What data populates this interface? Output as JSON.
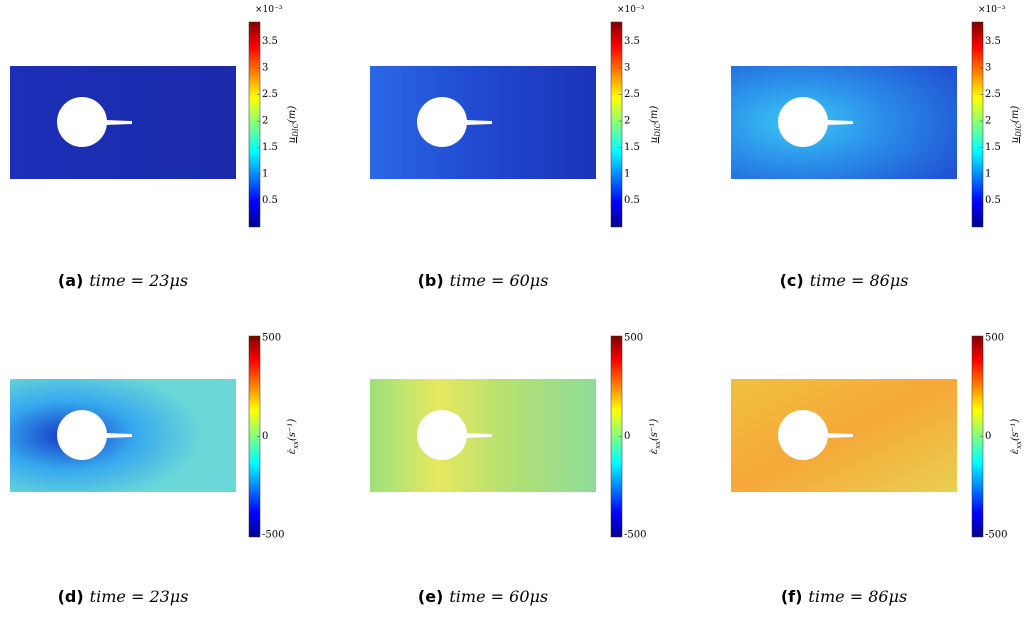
{
  "figure": {
    "rows": [
      {
        "colorbar": {
          "multiplier": "×10⁻³",
          "label": "u",
          "label_sub": "DIC",
          "label_unit": "(m)",
          "range": [
            0,
            3.87
          ],
          "ticks": [
            0.5,
            1,
            1.5,
            2,
            2.5,
            3,
            3.5
          ]
        },
        "panels": [
          {
            "tag": "(a)",
            "caption": "time = 23μs"
          },
          {
            "tag": "(b)",
            "caption": "time = 60μs"
          },
          {
            "tag": "(c)",
            "caption": "time = 86μs"
          }
        ]
      },
      {
        "colorbar": {
          "label": "ε̇",
          "label_sub": "xx",
          "label_unit": "(s⁻¹)",
          "range": [
            -510,
            510
          ],
          "ticks": [
            -500,
            0,
            500
          ]
        },
        "panels": [
          {
            "tag": "(d)",
            "caption": "time = 23μs"
          },
          {
            "tag": "(e)",
            "caption": "time = 60μs"
          },
          {
            "tag": "(f)",
            "caption": "time = 86μs"
          }
        ]
      }
    ]
  }
}
